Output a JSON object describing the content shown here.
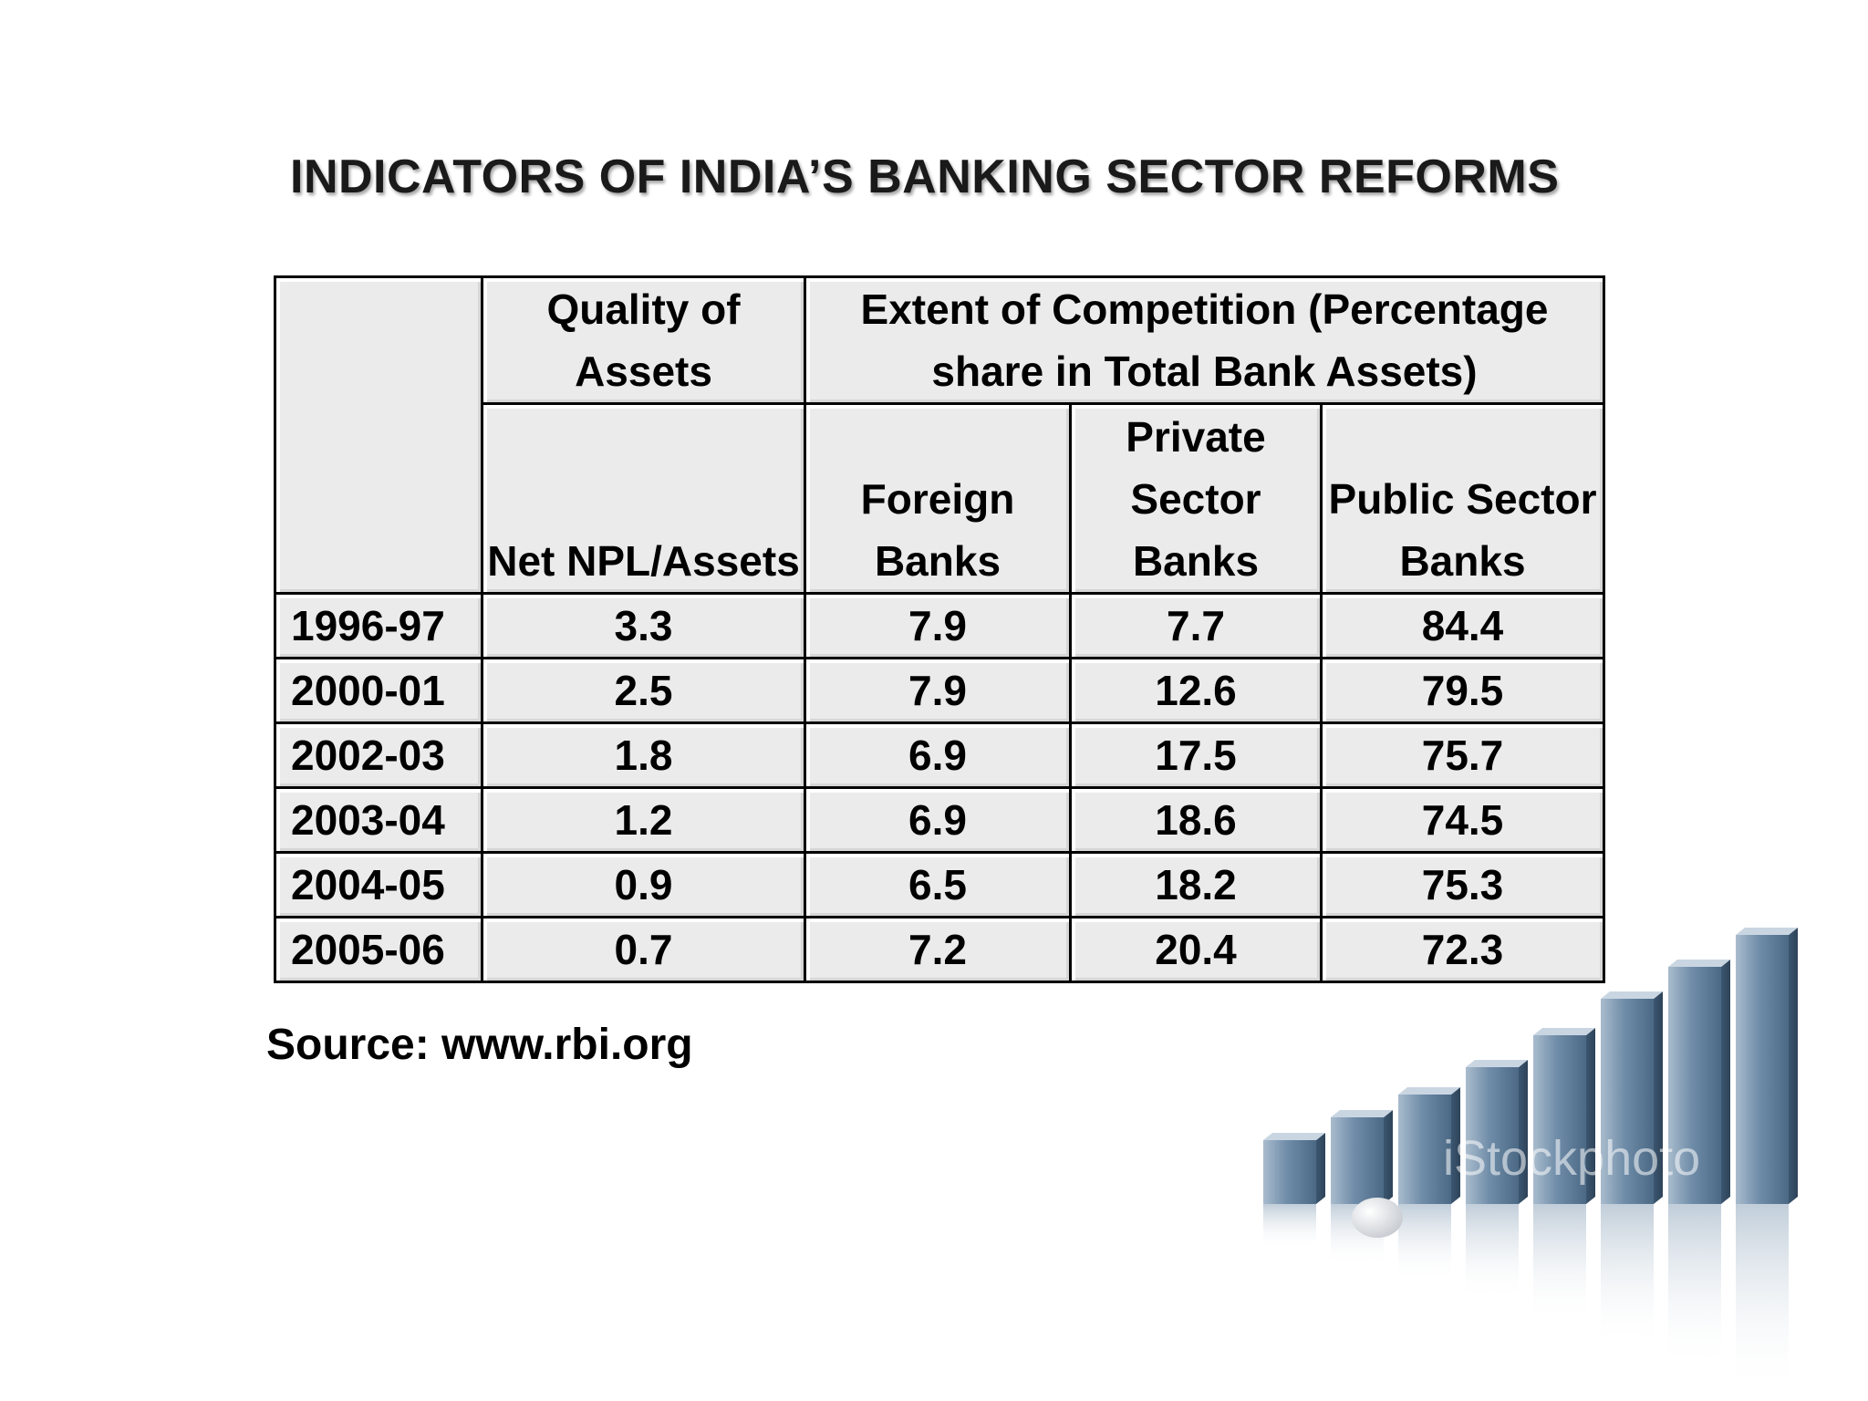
{
  "title": "INDICATORS OF INDIA’S BANKING SECTOR REFORMS",
  "table": {
    "header_group_1": "Quality of Assets",
    "header_group_2": "Extent of Competition (Percentage share in Total Bank Assets)",
    "columns": [
      "Net NPL/Assets",
      "Foreign Banks",
      "Private Sector Banks",
      "Public Sector Banks"
    ],
    "rows": [
      {
        "year": "1996-97",
        "cells": [
          "3.3",
          "7.9",
          "7.7",
          "84.4"
        ]
      },
      {
        "year": "2000-01",
        "cells": [
          "2.5",
          "7.9",
          "12.6",
          "79.5"
        ]
      },
      {
        "year": "2002-03",
        "cells": [
          "1.8",
          "6.9",
          "17.5",
          "75.7"
        ]
      },
      {
        "year": "2003-04",
        "cells": [
          "1.2",
          "6.9",
          "18.6",
          "74.5"
        ]
      },
      {
        "year": "2004-05",
        "cells": [
          "0.9",
          "6.5",
          "18.2",
          "75.3"
        ]
      },
      {
        "year": "2005-06",
        "cells": [
          "0.7",
          "7.2",
          "20.4",
          "72.3"
        ]
      }
    ]
  },
  "source": "Source: www.rbi.org",
  "watermark": "iStockphoto",
  "decoration": {
    "type": "stock bar chart illustration",
    "bar_color": "#5a7a98"
  }
}
